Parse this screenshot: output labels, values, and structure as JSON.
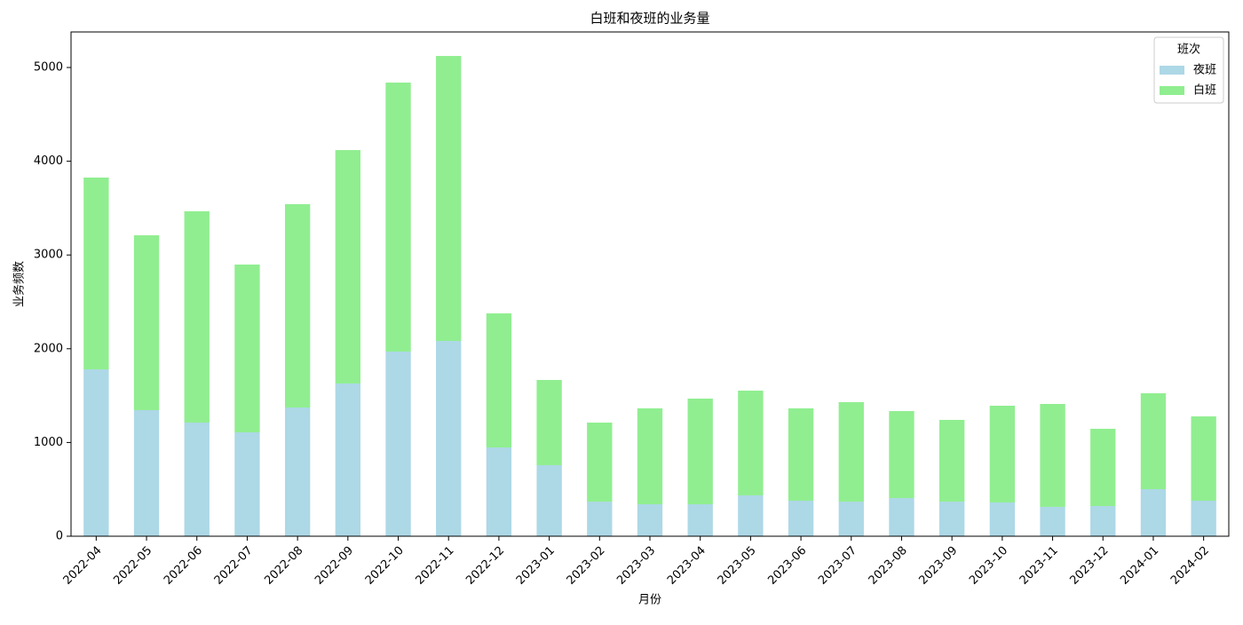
{
  "chart_data": {
    "type": "stacked_bar",
    "title": "白班和夜班的业务量",
    "x_label": "月份",
    "y_label": "业务频数",
    "categories": [
      "2022-04",
      "2022-05",
      "2022-06",
      "2022-07",
      "2022-08",
      "2022-09",
      "2022-10",
      "2022-11",
      "2022-12",
      "2023-01",
      "2023-02",
      "2023-03",
      "2023-04",
      "2023-05",
      "2023-06",
      "2023-07",
      "2023-08",
      "2023-09",
      "2023-10",
      "2023-11",
      "2023-12",
      "2024-01",
      "2024-02"
    ],
    "series": [
      {
        "name": "夜班",
        "color": "#add8e6",
        "values": [
          1780,
          1345,
          1212,
          1108,
          1373,
          1629,
          1970,
          2083,
          947,
          758,
          369,
          341,
          341,
          436,
          379,
          369,
          407,
          369,
          360,
          313,
          322,
          502,
          379
        ]
      },
      {
        "name": "白班",
        "color": "#90ee90",
        "values": [
          2046,
          1865,
          2254,
          1790,
          2169,
          2490,
          2869,
          3040,
          1430,
          909,
          843,
          1023,
          1127,
          1117,
          985,
          1061,
          928,
          872,
          1032,
          1098,
          824,
          1023,
          899
        ]
      }
    ],
    "legend_title": "班次",
    "legend_position": "upper right",
    "ylim": [
      0,
      5379
    ],
    "yticks": [
      0,
      1000,
      2000,
      3000,
      4000,
      5000
    ]
  }
}
